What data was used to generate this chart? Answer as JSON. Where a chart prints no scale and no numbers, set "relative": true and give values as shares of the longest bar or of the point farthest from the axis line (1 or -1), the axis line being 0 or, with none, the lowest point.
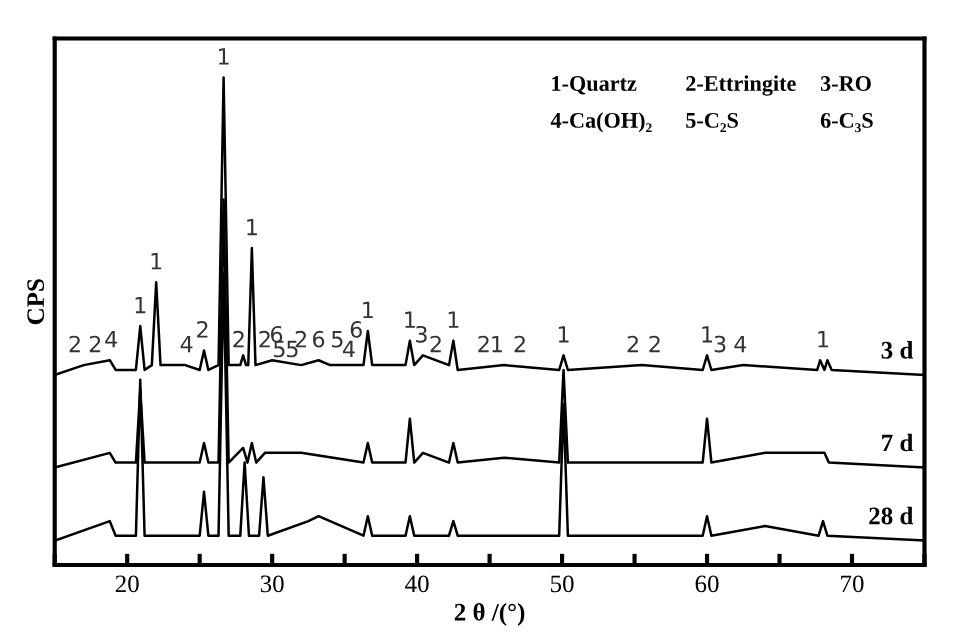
{
  "chart_data": {
    "type": "line",
    "relative": true,
    "xlabel": "2 θ /(°)",
    "ylabel": "CPS",
    "xlim": [
      15,
      75
    ],
    "xticks": [
      {
        "value": 15,
        "label": null
      },
      20,
      {
        "value": 25,
        "label": null
      },
      30,
      {
        "value": 35,
        "label": null
      },
      40,
      {
        "value": 45,
        "label": null
      },
      50,
      {
        "value": 55,
        "label": null
      },
      60,
      {
        "value": 65,
        "label": null
      },
      70,
      {
        "value": 75,
        "label": null
      }
    ],
    "grid": false,
    "legend": false,
    "marker": "none",
    "line_style": "solid",
    "series": [
      {
        "name": "3 d",
        "color": "#000000",
        "x": [
          15,
          17,
          18.8,
          19.2,
          20.6,
          20.9,
          21.2,
          21.7,
          22.0,
          22.3,
          24.0,
          25.0,
          25.3,
          25.6,
          26.3,
          26.65,
          27.0,
          27.8,
          28.0,
          28.2,
          28.35,
          28.6,
          28.85,
          30,
          32,
          33.2,
          34,
          36.3,
          36.6,
          36.9,
          39.2,
          39.5,
          39.8,
          40.4,
          42.2,
          42.5,
          42.8,
          46,
          49.8,
          50.1,
          50.4,
          55.5,
          59.7,
          60.0,
          60.3,
          62.5,
          67.6,
          67.8,
          68.1,
          68.3,
          68.6,
          75
        ],
        "values": [
          0.39,
          0.41,
          0.42,
          0.4,
          0.4,
          0.49,
          0.4,
          0.41,
          0.58,
          0.41,
          0.41,
          0.4,
          0.44,
          0.4,
          0.41,
          1.0,
          0.41,
          0.41,
          0.43,
          0.41,
          0.41,
          0.65,
          0.41,
          0.42,
          0.41,
          0.42,
          0.41,
          0.41,
          0.48,
          0.41,
          0.41,
          0.46,
          0.41,
          0.43,
          0.41,
          0.46,
          0.4,
          0.41,
          0.4,
          0.43,
          0.4,
          0.41,
          0.4,
          0.43,
          0.4,
          0.41,
          0.4,
          0.42,
          0.4,
          0.42,
          0.4,
          0.39
        ]
      },
      {
        "name": "7 d",
        "color": "#000000",
        "x": [
          15,
          18.8,
          19.2,
          20.6,
          20.9,
          21.2,
          25.0,
          25.3,
          25.6,
          26.3,
          26.65,
          27.0,
          28.0,
          28.3,
          28.6,
          28.9,
          29.5,
          32,
          36.3,
          36.6,
          36.9,
          39.2,
          39.5,
          39.8,
          40.4,
          42.2,
          42.5,
          42.8,
          46,
          49.8,
          50.1,
          50.4,
          59.7,
          60.0,
          60.3,
          64,
          68.1,
          68.4,
          75
        ],
        "values": [
          0.2,
          0.23,
          0.21,
          0.21,
          0.36,
          0.21,
          0.21,
          0.25,
          0.21,
          0.21,
          0.75,
          0.21,
          0.24,
          0.21,
          0.25,
          0.21,
          0.23,
          0.23,
          0.21,
          0.25,
          0.21,
          0.21,
          0.3,
          0.21,
          0.23,
          0.21,
          0.25,
          0.21,
          0.22,
          0.21,
          0.4,
          0.21,
          0.21,
          0.3,
          0.21,
          0.23,
          0.23,
          0.21,
          0.2
        ]
      },
      {
        "name": "28 d",
        "color": "#000000",
        "x": [
          15,
          18.8,
          19.2,
          20.6,
          20.9,
          21.2,
          25.0,
          25.3,
          25.6,
          26.3,
          26.65,
          27.0,
          27.8,
          28.1,
          28.4,
          29.1,
          29.4,
          29.7,
          32.5,
          33.2,
          36.3,
          36.6,
          36.9,
          39.2,
          39.5,
          39.8,
          42.2,
          42.5,
          42.8,
          49.8,
          50.1,
          50.4,
          59.7,
          60.0,
          60.3,
          64,
          67.7,
          68.0,
          68.3,
          75
        ],
        "values": [
          0.05,
          0.09,
          0.06,
          0.06,
          0.38,
          0.06,
          0.06,
          0.15,
          0.06,
          0.06,
          0.6,
          0.06,
          0.06,
          0.21,
          0.06,
          0.06,
          0.18,
          0.06,
          0.09,
          0.1,
          0.06,
          0.1,
          0.06,
          0.06,
          0.1,
          0.06,
          0.06,
          0.09,
          0.06,
          0.06,
          0.33,
          0.06,
          0.06,
          0.1,
          0.06,
          0.08,
          0.06,
          0.09,
          0.06,
          0.05
        ]
      }
    ],
    "annotations": [
      "1-Quartz",
      "2-Ettringite",
      "3-RO",
      "4-Ca(OH)₂",
      "5-C₂S",
      "6-C₃S",
      {
        "text": "2",
        "x": 16.4,
        "y": 0.41
      },
      {
        "text": "2",
        "x": 17.8,
        "y": 0.41
      },
      {
        "text": "4",
        "x": 18.9,
        "y": 0.42
      },
      {
        "text": "1",
        "x": 20.9,
        "y": 0.49
      },
      {
        "text": "1",
        "x": 22.0,
        "y": 0.58
      },
      {
        "text": "4",
        "x": 24.1,
        "y": 0.41
      },
      {
        "text": "2",
        "x": 25.2,
        "y": 0.44
      },
      {
        "text": "1",
        "x": 26.65,
        "y": 1.0
      },
      {
        "text": "2",
        "x": 27.7,
        "y": 0.42
      },
      {
        "text": "1",
        "x": 28.6,
        "y": 0.65
      },
      {
        "text": "2",
        "x": 29.5,
        "y": 0.42
      },
      {
        "text": "6",
        "x": 30.3,
        "y": 0.43
      },
      {
        "text": "5",
        "x": 30.5,
        "y": 0.4
      },
      {
        "text": "5",
        "x": 31.4,
        "y": 0.4
      },
      {
        "text": "2",
        "x": 32.0,
        "y": 0.42
      },
      {
        "text": "6",
        "x": 33.2,
        "y": 0.42
      },
      {
        "text": "5",
        "x": 34.5,
        "y": 0.42
      },
      {
        "text": "4",
        "x": 35.3,
        "y": 0.4
      },
      {
        "text": "6",
        "x": 35.8,
        "y": 0.44
      },
      {
        "text": "1",
        "x": 36.6,
        "y": 0.48
      },
      {
        "text": "1",
        "x": 39.5,
        "y": 0.46
      },
      {
        "text": "3",
        "x": 40.3,
        "y": 0.43
      },
      {
        "text": "2",
        "x": 41.3,
        "y": 0.41
      },
      {
        "text": "1",
        "x": 42.5,
        "y": 0.46
      },
      {
        "text": "2",
        "x": 44.6,
        "y": 0.41
      },
      {
        "text": "1",
        "x": 45.5,
        "y": 0.41
      },
      {
        "text": "2",
        "x": 47.1,
        "y": 0.41
      },
      {
        "text": "1",
        "x": 50.1,
        "y": 0.43
      },
      {
        "text": "2",
        "x": 54.9,
        "y": 0.41
      },
      {
        "text": "2",
        "x": 56.4,
        "y": 0.41
      },
      {
        "text": "1",
        "x": 60.0,
        "y": 0.43
      },
      {
        "text": "3",
        "x": 60.9,
        "y": 0.41
      },
      {
        "text": "4",
        "x": 62.3,
        "y": 0.41
      },
      {
        "text": "1",
        "x": 68.0,
        "y": 0.42
      }
    ]
  }
}
